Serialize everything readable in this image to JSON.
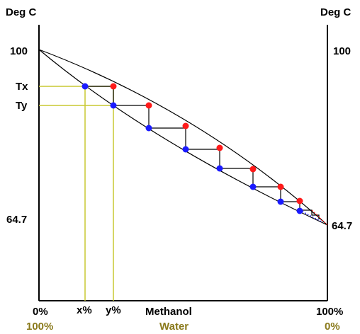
{
  "labels": {
    "left_unit": "Deg C",
    "right_unit": "Deg C",
    "left_100": "100",
    "right_100": "100",
    "tx": "Tx",
    "ty": "Ty",
    "left_64": "64.7",
    "right_64": "64.7",
    "x_left_top": "0%",
    "x_left_bottom": "100%",
    "x_pct": "x%",
    "y_pct": "y%",
    "methanol": "Methanol",
    "water": "Water",
    "x_right_top": "100%",
    "x_right_bottom": "0%"
  },
  "colors": {
    "axis": "#000000",
    "guide": "#c8c832",
    "liquid_point": "#1a1aff",
    "vapor_point": "#ff1a1a",
    "olive_text": "#8a7a1c"
  },
  "chart_data": {
    "type": "diagram",
    "x_axis": {
      "min_label": "0%",
      "max_label": "100%",
      "component_top": "Methanol",
      "component_bottom": "Water"
    },
    "y_axis": {
      "top_value": 100,
      "bottom_value": 64.7,
      "unit": "Deg C"
    },
    "markers": {
      "Tx": "Tx",
      "Ty": "Ty",
      "x": "x%",
      "y": "y%"
    },
    "stages": 8
  }
}
